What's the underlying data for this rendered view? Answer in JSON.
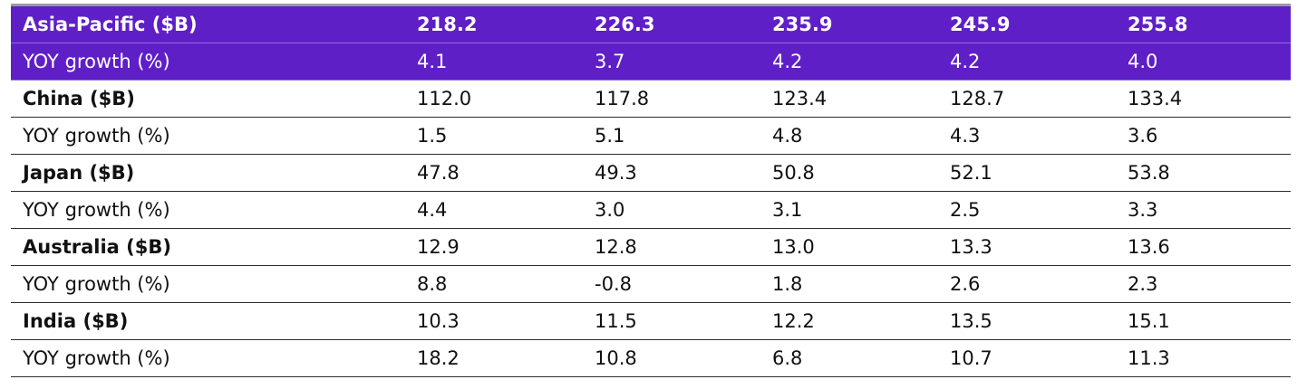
{
  "rows": [
    {
      "label": "Asia-Pacific ($B)",
      "values": [
        "218.2",
        "226.3",
        "235.9",
        "245.9",
        "255.8"
      ]
    },
    {
      "label": "YOY growth (%)",
      "values": [
        "4.1",
        "3.7",
        "4.2",
        "4.2",
        "4.0"
      ]
    },
    {
      "label": "China ($B)",
      "values": [
        "112.0",
        "117.8",
        "123.4",
        "128.7",
        "133.4"
      ]
    },
    {
      "label": "YOY growth (%)",
      "values": [
        "1.5",
        "5.1",
        "4.8",
        "4.3",
        "3.6"
      ]
    },
    {
      "label": "Japan ($B)",
      "values": [
        "47.8",
        "49.3",
        "50.8",
        "52.1",
        "53.8"
      ]
    },
    {
      "label": "YOY growth (%)",
      "values": [
        "4.4",
        "3.0",
        "3.1",
        "2.5",
        "3.3"
      ]
    },
    {
      "label": "Australia ($B)",
      "values": [
        "12.9",
        "12.8",
        "13.0",
        "13.3",
        "13.6"
      ]
    },
    {
      "label": "YOY growth (%)",
      "values": [
        "8.8",
        "-0.8",
        "1.8",
        "2.6",
        "2.3"
      ]
    },
    {
      "label": "India ($B)",
      "values": [
        "10.3",
        "11.5",
        "12.2",
        "13.5",
        "15.1"
      ]
    },
    {
      "label": "YOY growth (%)",
      "values": [
        "18.2",
        "10.8",
        "6.8",
        "10.7",
        "11.3"
      ]
    }
  ],
  "colors": {
    "highlight_bg": "#5f1fc7",
    "highlight_text": "#ffffff",
    "rule": "#2b2b2b"
  }
}
